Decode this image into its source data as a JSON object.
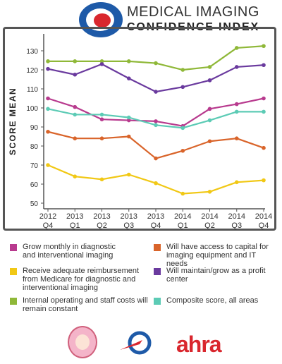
{
  "header": {
    "title_line1": "MEDICAL IMAGING",
    "title_line2": "CONFIDENCE INDEX"
  },
  "chart_data": {
    "type": "line",
    "ylabel": "SCORE MEAN",
    "xlabel": "",
    "ylim": [
      45,
      137
    ],
    "yticks": [
      50,
      60,
      70,
      80,
      90,
      100,
      110,
      120,
      130
    ],
    "categories": [
      [
        "2012",
        "Q4"
      ],
      [
        "2013",
        "Q1"
      ],
      [
        "2013",
        "Q2"
      ],
      [
        "2013",
        "Q3"
      ],
      [
        "2013",
        "Q4"
      ],
      [
        "2014",
        "Q1"
      ],
      [
        "2014",
        "Q2"
      ],
      [
        "2014",
        "Q3"
      ],
      [
        "2014",
        "Q4"
      ]
    ],
    "series": [
      {
        "name": "Internal operating and staff costs will remain constant",
        "color": "#8fb838",
        "values": [
          124.5,
          124.5,
          124.5,
          124.5,
          123.5,
          120,
          121.5,
          131.5,
          132.5
        ]
      },
      {
        "name": "Will maintain/grow as a profit center",
        "color": "#6a3a9e",
        "values": [
          120.5,
          117.5,
          123,
          115.5,
          108.5,
          111,
          114.5,
          121.5,
          122.5
        ]
      },
      {
        "name": "Grow monthly in diagnostic and interventional imaging",
        "color": "#b83a8e",
        "values": [
          105,
          100.5,
          94,
          93.5,
          93,
          90.5,
          99.5,
          102,
          105
        ]
      },
      {
        "name": "Composite score, all areas",
        "color": "#5ccbb5",
        "values": [
          99.5,
          96.5,
          96.5,
          95,
          91,
          89.5,
          93.5,
          98,
          98
        ]
      },
      {
        "name": "Will have access to capital for imaging equipment and IT needs",
        "color": "#d9642a",
        "values": [
          87.5,
          84,
          84,
          85,
          73.5,
          77.5,
          82.5,
          84,
          79
        ]
      },
      {
        "name": "Receive adequate reimbursement from Medicare for diagnostic and interventional imaging",
        "color": "#f1c815",
        "values": [
          70,
          64,
          62.5,
          65,
          60.5,
          55,
          56,
          61,
          62
        ]
      }
    ]
  },
  "legend": [
    {
      "label": "Grow monthly in diagnostic and interventional imaging",
      "color": "#b83a8e"
    },
    {
      "label": "Will have access to capital for imaging equipment and IT needs",
      "color": "#d9642a"
    },
    {
      "label": "Receive adequate reimbursement from Medicare for diagnostic and interventional imaging",
      "color": "#f1c815"
    },
    {
      "label": "Will maintain/grow as a profit center",
      "color": "#6a3a9e"
    },
    {
      "label": "Internal operating and staff costs will remain constant",
      "color": "#8fb838"
    },
    {
      "label": "Composite score, all areas",
      "color": "#5ccbb5"
    }
  ],
  "footer": {
    "ahra_text": "ahra"
  }
}
